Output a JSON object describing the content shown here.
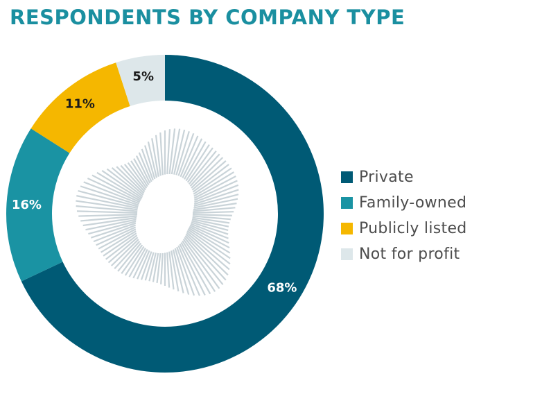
{
  "title": "RESPONDENTS BY COMPANY TYPE",
  "chart_data": {
    "type": "pie",
    "title": "RESPONDENTS BY COMPANY TYPE",
    "categories": [
      "Private",
      "Family-owned",
      "Publicly listed",
      "Not for profit"
    ],
    "values": [
      68,
      16,
      11,
      5
    ],
    "data_labels": [
      "68%",
      "16%",
      "11%",
      "5%"
    ],
    "colors": [
      "#005a75",
      "#1a93a3",
      "#f5b700",
      "#dde7ea"
    ],
    "label_colors": [
      "#ffffff",
      "#ffffff",
      "#1a1a1a",
      "#1a1a1a"
    ],
    "legend_position": "right"
  }
}
